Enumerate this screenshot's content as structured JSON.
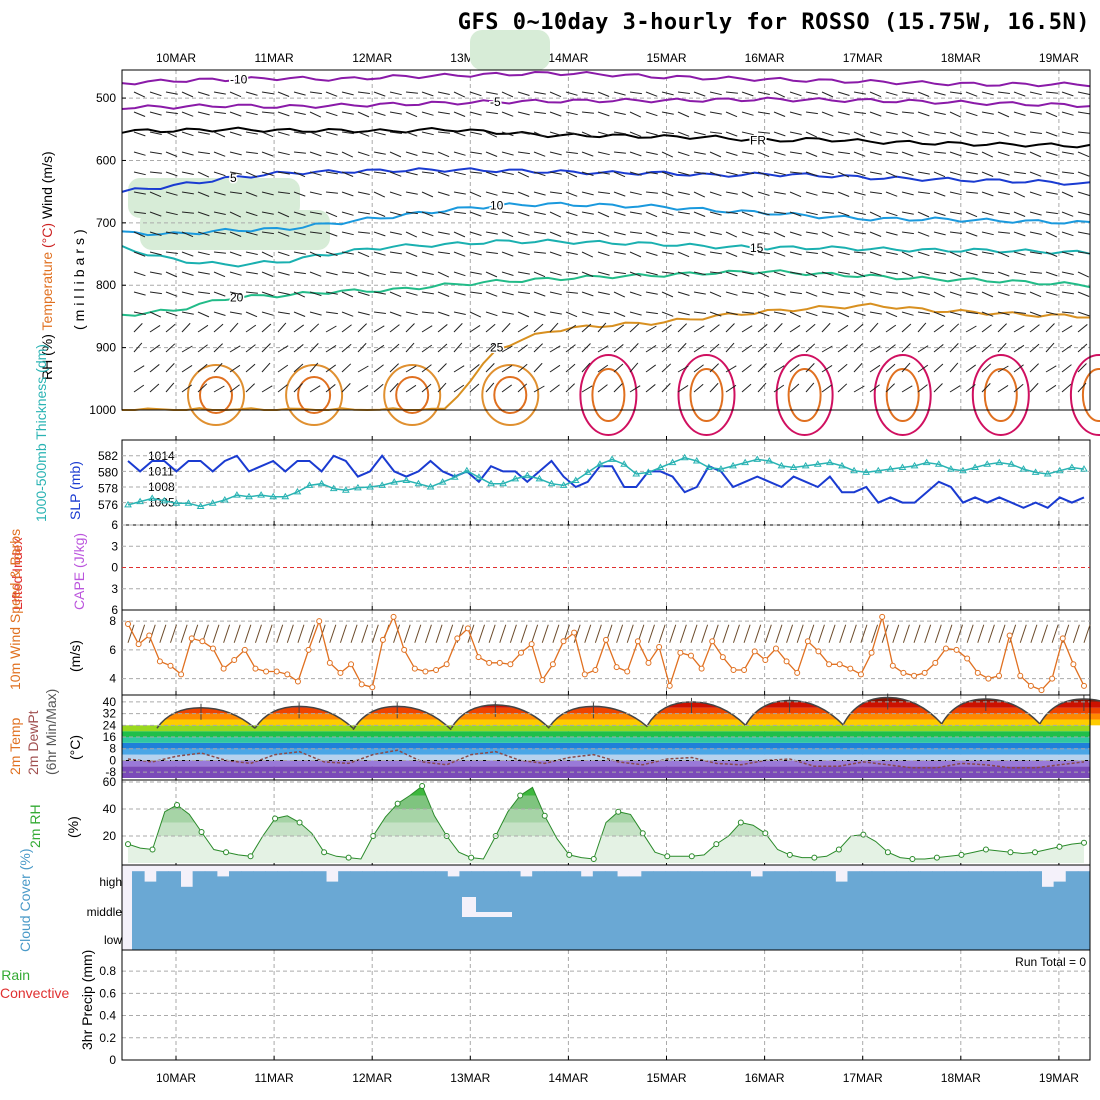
{
  "title": "GFS 0~10day 3-hourly for ROSSO (15.75W, 16.5N)",
  "date_labels": [
    "10MAR",
    "11MAR",
    "12MAR",
    "13MAR",
    "14MAR",
    "15MAR",
    "16MAR",
    "17MAR",
    "18MAR",
    "19MAR"
  ],
  "colors": {
    "temp": "#e07020",
    "wind": "#e07020",
    "rh": "#33aa33",
    "cloud": "#6aa8d4",
    "slp": "#1a3bd1",
    "thick": "#29b3b3",
    "li": "#e03030",
    "cape": "#bb55dd",
    "precip_rain": "#33aa33",
    "precip_conv": "#e03030"
  },
  "chart_data": [
    {
      "type": "contour",
      "name": "upper_air",
      "ylabel_parts": [
        {
          "text": "RH (%)",
          "color": "#000000"
        },
        {
          "text": "Temperature",
          "color": "#e07020"
        },
        {
          "text": "(°C)",
          "color": "#cc2222"
        },
        {
          "text": "Wind (m/s)",
          "color": "#000000"
        }
      ],
      "ylabel2": "(millibars)",
      "yticks": [
        500,
        600,
        700,
        800,
        900,
        1000
      ],
      "ylim": [
        455,
        1000
      ],
      "isotherms": [
        {
          "label": "-10",
          "color": "#8a1aa8",
          "levels": [
            476,
            472,
            470,
            468,
            470,
            466,
            464,
            462,
            460,
            462,
            466,
            468,
            470,
            472,
            474,
            476,
            478,
            478,
            478
          ]
        },
        {
          "label": "-5",
          "color": "#8a1aa8",
          "levels": [
            515,
            514,
            512,
            514,
            512,
            510,
            508,
            506,
            505,
            504,
            504,
            503,
            502,
            503,
            504,
            506,
            508,
            510,
            512
          ]
        },
        {
          "label": "FR",
          "color": "#000000",
          "levels": [
            553,
            552,
            550,
            552,
            552,
            553,
            550,
            555,
            560,
            560,
            562,
            563,
            568,
            566,
            570,
            572,
            574,
            575,
            577
          ]
        },
        {
          "label": "5",
          "color": "#1a3bd1",
          "levels": [
            650,
            640,
            628,
            620,
            618,
            616,
            615,
            616,
            618,
            620,
            620,
            624,
            622,
            624,
            628,
            630,
            632,
            634,
            638
          ]
        },
        {
          "label": "10",
          "color": "#1a99dd",
          "levels": [
            716,
            718,
            712,
            710,
            700,
            690,
            680,
            672,
            670,
            672,
            674,
            680,
            684,
            690,
            694,
            694,
            696,
            698,
            700
          ]
        },
        {
          "label": "15",
          "color": "#1ab0b0",
          "levels": [
            740,
            760,
            768,
            762,
            748,
            738,
            735,
            730,
            730,
            732,
            734,
            738,
            740,
            740,
            742,
            744,
            744,
            746,
            748
          ]
        },
        {
          "label": "20",
          "color": "#22bb88",
          "levels": [
            848,
            840,
            820,
            816,
            810,
            808,
            800,
            794,
            790,
            786,
            784,
            780,
            778,
            782,
            786,
            790,
            792,
            796,
            800
          ]
        },
        {
          "label": "25",
          "color": "#d89020",
          "levels": [
            1000,
            1000,
            1000,
            1000,
            1000,
            1000,
            1000,
            900,
            872,
            864,
            860,
            850,
            842,
            836,
            832,
            840,
            844,
            848,
            850
          ]
        }
      ],
      "contour_labels": [
        "-10",
        "-5",
        "FR",
        "5",
        "10",
        "15",
        "20",
        "25"
      ]
    },
    {
      "type": "line",
      "name": "slp_thickness",
      "ylabel_left": "1000-500mb Thickness (dm)",
      "ylabel_right": "SLP (mb)",
      "yticks_left": [
        576,
        578,
        580,
        582
      ],
      "yticks_right": [
        1005,
        1008,
        1011,
        1014
      ],
      "series": [
        {
          "name": "SLP (mb)",
          "values": [
            1013,
            1011,
            1013,
            1013,
            1011,
            1013,
            1013,
            1011,
            1013,
            1014,
            1011,
            1012,
            1013,
            1011,
            1013,
            1013,
            1011,
            1014,
            1013,
            1010,
            1011,
            1014,
            1011,
            1010,
            1011,
            1013,
            1011,
            1010,
            1011,
            1009,
            1012,
            1011,
            1011,
            1009,
            1011,
            1013,
            1010,
            1008,
            1009,
            1012,
            1012,
            1008,
            1008,
            1011,
            1011,
            1010,
            1007,
            1008,
            1012,
            1011,
            1008,
            1009,
            1010,
            1009,
            1008,
            1010,
            1009,
            1008,
            1010,
            1007,
            1007,
            1008,
            1005,
            1006,
            1005,
            1005,
            1007,
            1009,
            1008,
            1005,
            1006,
            1005,
            1006,
            1005,
            1004,
            1005,
            1004,
            1006,
            1005,
            1006
          ]
        },
        {
          "name": "Thickness (dm)",
          "values": [
            576,
            576.4,
            576.8,
            576.5,
            576.2,
            576.2,
            575.8,
            576.2,
            576.6,
            577.2,
            577.0,
            577.2,
            577.0,
            577.0,
            577.6,
            578.4,
            578.6,
            578.0,
            577.8,
            578.1,
            578.2,
            578.4,
            578.8,
            579.0,
            578.6,
            578.2,
            578.8,
            579.4,
            580.2,
            579.4,
            578.6,
            578.6,
            579.2,
            579.6,
            579.2,
            578.6,
            578.4,
            579.0,
            580.0,
            581.0,
            581.6,
            581.0,
            579.8,
            580.0,
            580.6,
            581.2,
            581.8,
            581.4,
            580.6,
            580.4,
            580.8,
            581.2,
            581.6,
            581.4,
            580.8,
            580.6,
            580.8,
            581.0,
            581.2,
            580.8,
            580.2,
            580.0,
            580.2,
            580.4,
            580.6,
            580.8,
            581.2,
            581.0,
            580.4,
            580.2,
            580.6,
            581.0,
            581.2,
            581.0,
            580.4,
            580.0,
            579.8,
            580.2,
            580.6,
            580.4
          ]
        }
      ]
    },
    {
      "type": "line",
      "name": "li_cape",
      "ylabel_left": "Lifted Index",
      "ylabel_right": "CAPE (J/kg)",
      "yticks": [
        -6,
        -3,
        0,
        3,
        6
      ],
      "ylim": [
        -6,
        6
      ],
      "zero_line": 0
    },
    {
      "type": "line",
      "name": "wind10m",
      "ylabel": "10m Wind Speed & Barbs",
      "yunit": "(m/s)",
      "yticks": [
        4,
        6,
        8
      ],
      "ylim": [
        3,
        8.5
      ],
      "values": [
        7.8,
        6.4,
        7.0,
        5.2,
        4.9,
        4.3,
        6.8,
        6.6,
        6.1,
        4.7,
        5.3,
        6.0,
        4.7,
        4.5,
        4.5,
        4.3,
        3.8,
        6.0,
        8.0,
        5.1,
        4.4,
        5.0,
        3.6,
        3.4,
        6.7,
        8.3,
        6.0,
        4.7,
        4.5,
        4.6,
        5.0,
        6.8,
        7.5,
        5.5,
        5.1,
        5.1,
        5.0,
        5.8,
        6.4,
        3.9,
        5.0,
        6.6,
        7.2,
        4.3,
        4.6,
        6.7,
        4.8,
        4.5,
        6.6,
        5.1,
        6.2,
        3.5,
        5.8,
        5.6,
        4.7,
        6.6,
        5.5,
        4.6,
        4.6,
        5.9,
        5.3,
        6.1,
        5.2,
        4.4,
        6.6,
        5.9,
        5.0,
        5.0,
        4.7,
        4.3,
        5.8,
        8.3,
        4.9,
        4.4,
        4.2,
        4.4,
        5.1,
        6.1,
        6.0,
        5.4,
        4.4,
        4.0,
        4.2,
        7.0,
        4.2,
        3.5,
        3.2,
        4.0,
        6.8,
        5.0,
        3.5
      ]
    },
    {
      "type": "area",
      "name": "temp_dewpt",
      "ylabel_parts": [
        "2m Temp",
        "2m DewPt",
        "(6hr Min/Max)"
      ],
      "yunit": "(°C)",
      "yticks": [
        -8,
        0,
        8,
        16,
        24,
        32,
        40
      ],
      "ylim": [
        -12,
        42
      ],
      "temp_daily": [
        {
          "min": 22,
          "max": 36
        },
        {
          "min": 22,
          "max": 37
        },
        {
          "min": 21,
          "max": 37
        },
        {
          "min": 22,
          "max": 38
        },
        {
          "min": 23,
          "max": 37
        },
        {
          "min": 24,
          "max": 40
        },
        {
          "min": 24,
          "max": 41
        },
        {
          "min": 25,
          "max": 43
        },
        {
          "min": 25,
          "max": 42
        },
        {
          "min": 25,
          "max": 42
        }
      ],
      "dewpt_values": [
        1,
        -1,
        3,
        5,
        0,
        -2,
        4,
        6,
        -1,
        -2,
        4,
        7,
        -1,
        -3,
        4,
        6,
        0,
        -2,
        2,
        4,
        -1,
        -3,
        1,
        2,
        -2,
        -3,
        0,
        1,
        -4,
        -4,
        -1,
        -3,
        -5,
        -5,
        -2,
        -3,
        -5,
        -5,
        -3,
        -1
      ]
    },
    {
      "type": "area",
      "name": "rh2m",
      "ylabel": "2m RH",
      "yunit": "(%)",
      "yticks": [
        20,
        40,
        60
      ],
      "ylim": [
        0,
        60
      ],
      "values": [
        14,
        11,
        10,
        38,
        43,
        36,
        23,
        10,
        8,
        6,
        5,
        20,
        33,
        35,
        30,
        22,
        8,
        5,
        4,
        3,
        20,
        34,
        44,
        50,
        57,
        35,
        20,
        8,
        4,
        3,
        20,
        38,
        50,
        56,
        35,
        18,
        6,
        4,
        3,
        30,
        38,
        36,
        22,
        8,
        5,
        5,
        5,
        6,
        14,
        20,
        30,
        28,
        22,
        10,
        6,
        4,
        4,
        5,
        10,
        20,
        21,
        16,
        8,
        4,
        3,
        3,
        4,
        5,
        6,
        8,
        10,
        9,
        8,
        7,
        8,
        10,
        12,
        14,
        15
      ]
    },
    {
      "type": "area",
      "name": "cloud_cover",
      "ylabel": "Cloud Cover (%)",
      "levels": [
        "high",
        "middle",
        "low"
      ],
      "high_values": [
        80,
        40,
        80,
        80,
        20,
        80,
        80,
        60,
        80,
        80,
        80,
        80,
        80,
        80,
        80,
        80,
        40,
        80,
        80,
        80,
        80,
        80,
        80,
        80,
        80,
        80,
        60,
        80,
        80,
        80,
        80,
        80,
        60,
        80,
        80,
        80,
        80,
        60,
        80,
        80,
        60,
        60,
        80,
        80,
        80,
        80,
        80,
        80,
        80,
        80,
        80,
        60,
        80,
        80,
        80,
        80,
        80,
        80,
        40,
        80,
        80,
        80,
        80,
        80,
        80,
        80,
        80,
        80,
        80,
        80,
        80,
        80,
        80,
        80,
        80,
        20,
        40,
        80,
        80
      ],
      "mid_values": "100",
      "low_values": "100"
    },
    {
      "type": "bar",
      "name": "precip",
      "ylabel": "3hr Precip (mm)",
      "ylabel_left": "Total / Rain",
      "ylabel_left2": "Convective",
      "yticks": [
        0,
        0.2,
        0.4,
        0.6,
        0.8
      ],
      "ylim": [
        0,
        0.9
      ],
      "run_total": "Run Total = 0",
      "values": []
    }
  ],
  "cloud_level_labels": [
    "high",
    "middle",
    "low"
  ],
  "run_total": "Run Total = 0"
}
